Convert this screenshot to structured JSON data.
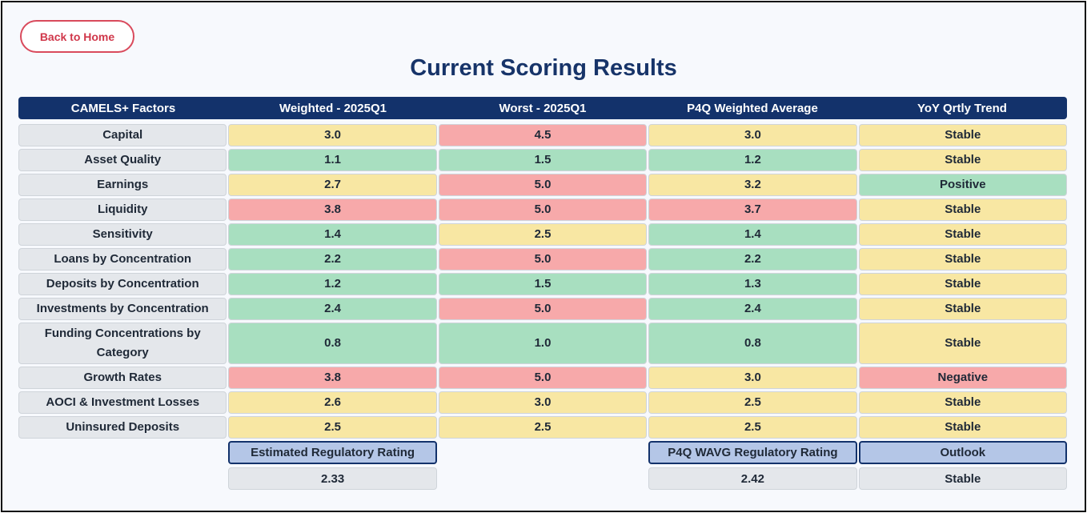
{
  "back_button": {
    "label": "Back to Home"
  },
  "page_title": "Current Scoring Results",
  "columns": [
    "CAMELS+ Factors",
    "Weighted - 2025Q1",
    "Worst - 2025Q1",
    "P4Q Weighted Average",
    "YoY Qrtly Trend"
  ],
  "colors": {
    "green": "#a8dfc0",
    "yellow": "#f8e7a3",
    "red": "#f7a9aa",
    "header": "#13326b"
  },
  "rows": [
    {
      "factor": "Capital",
      "weighted": "3.0",
      "weighted_color": "yellow",
      "worst": "4.5",
      "worst_color": "red",
      "p4q": "3.0",
      "p4q_color": "yellow",
      "trend": "Stable",
      "trend_color": "yellow"
    },
    {
      "factor": "Asset Quality",
      "weighted": "1.1",
      "weighted_color": "green",
      "worst": "1.5",
      "worst_color": "green",
      "p4q": "1.2",
      "p4q_color": "green",
      "trend": "Stable",
      "trend_color": "yellow"
    },
    {
      "factor": "Earnings",
      "weighted": "2.7",
      "weighted_color": "yellow",
      "worst": "5.0",
      "worst_color": "red",
      "p4q": "3.2",
      "p4q_color": "yellow",
      "trend": "Positive",
      "trend_color": "green"
    },
    {
      "factor": "Liquidity",
      "weighted": "3.8",
      "weighted_color": "red",
      "worst": "5.0",
      "worst_color": "red",
      "p4q": "3.7",
      "p4q_color": "red",
      "trend": "Stable",
      "trend_color": "yellow"
    },
    {
      "factor": "Sensitivity",
      "weighted": "1.4",
      "weighted_color": "green",
      "worst": "2.5",
      "worst_color": "yellow",
      "p4q": "1.4",
      "p4q_color": "green",
      "trend": "Stable",
      "trend_color": "yellow"
    },
    {
      "factor": "Loans by Concentration",
      "weighted": "2.2",
      "weighted_color": "green",
      "worst": "5.0",
      "worst_color": "red",
      "p4q": "2.2",
      "p4q_color": "green",
      "trend": "Stable",
      "trend_color": "yellow"
    },
    {
      "factor": "Deposits by Concentration",
      "weighted": "1.2",
      "weighted_color": "green",
      "worst": "1.5",
      "worst_color": "green",
      "p4q": "1.3",
      "p4q_color": "green",
      "trend": "Stable",
      "trend_color": "yellow"
    },
    {
      "factor": "Investments by Concentration",
      "weighted": "2.4",
      "weighted_color": "green",
      "worst": "5.0",
      "worst_color": "red",
      "p4q": "2.4",
      "p4q_color": "green",
      "trend": "Stable",
      "trend_color": "yellow"
    },
    {
      "factor": "Funding Concentrations by Category",
      "weighted": "0.8",
      "weighted_color": "green",
      "worst": "1.0",
      "worst_color": "green",
      "p4q": "0.8",
      "p4q_color": "green",
      "trend": "Stable",
      "trend_color": "yellow"
    },
    {
      "factor": "Growth Rates",
      "weighted": "3.8",
      "weighted_color": "red",
      "worst": "5.0",
      "worst_color": "red",
      "p4q": "3.0",
      "p4q_color": "yellow",
      "trend": "Negative",
      "trend_color": "red"
    },
    {
      "factor": "AOCI & Investment Losses",
      "weighted": "2.6",
      "weighted_color": "yellow",
      "worst": "3.0",
      "worst_color": "yellow",
      "p4q": "2.5",
      "p4q_color": "yellow",
      "trend": "Stable",
      "trend_color": "yellow"
    },
    {
      "factor": "Uninsured Deposits",
      "weighted": "2.5",
      "weighted_color": "yellow",
      "worst": "2.5",
      "worst_color": "yellow",
      "p4q": "2.5",
      "p4q_color": "yellow",
      "trend": "Stable",
      "trend_color": "yellow"
    }
  ],
  "summary": {
    "estimated_label": "Estimated Regulatory Rating",
    "estimated_value": "2.33",
    "p4q_label": "P4Q WAVG Regulatory Rating",
    "p4q_value": "2.42",
    "outlook_label": "Outlook",
    "outlook_value": "Stable"
  }
}
